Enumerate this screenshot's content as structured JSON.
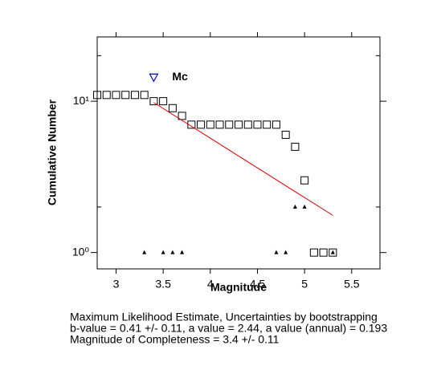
{
  "chart_data": {
    "type": "scatter",
    "xlabel": "Magnitude",
    "ylabel": "Cumulative Number",
    "xlim": [
      2.8,
      5.8
    ],
    "ylim": [
      0.78,
      26.6
    ],
    "log_y": true,
    "xticks": [
      3,
      3.5,
      4,
      4.5,
      5,
      5.5
    ],
    "yticks": [
      {
        "value": 1,
        "label": "10⁰"
      },
      {
        "value": 10,
        "label": "10¹"
      }
    ],
    "minor_yticks": [
      2,
      20
    ],
    "series": [
      {
        "marker": "square",
        "color": "#000000",
        "x": [
          2.8,
          2.9,
          3.0,
          3.1,
          3.2,
          3.3,
          3.4,
          3.5,
          3.6,
          3.7,
          3.8,
          3.9,
          4.0,
          4.1,
          4.2,
          4.3,
          4.4,
          4.5,
          4.6,
          4.7,
          4.8,
          4.9,
          5.0,
          5.1,
          5.2,
          5.3
        ],
        "values": [
          11,
          11,
          11,
          11,
          11,
          11,
          10,
          10,
          9,
          8,
          7,
          7,
          7,
          7,
          7,
          7,
          7,
          7,
          7,
          7,
          6,
          5,
          3,
          1,
          1,
          1
        ]
      },
      {
        "marker": "triangle",
        "color": "#000000",
        "x": [
          3.3,
          3.5,
          3.6,
          3.7,
          4.7,
          4.8,
          4.9,
          5.0,
          5.3
        ],
        "values": [
          1,
          1,
          1,
          1,
          1,
          1,
          2,
          2,
          1
        ]
      },
      {
        "marker": "line",
        "color": "#dd0000",
        "x": [
          3.4,
          5.3
        ],
        "values": [
          9.8,
          1.76
        ]
      }
    ],
    "annotation": {
      "text": "Mc",
      "x": 3.4,
      "y": 14.4,
      "color": "#0000cc"
    },
    "caption": [
      "Maximum Likelihood Estimate, Uncertainties by bootstrapping",
      "b-value = 0.41 +/- 0.11,  a value = 2.44,  a value (annual) = 0.193",
      "Magnitude of Completeness = 3.4 +/- 0.11"
    ]
  }
}
